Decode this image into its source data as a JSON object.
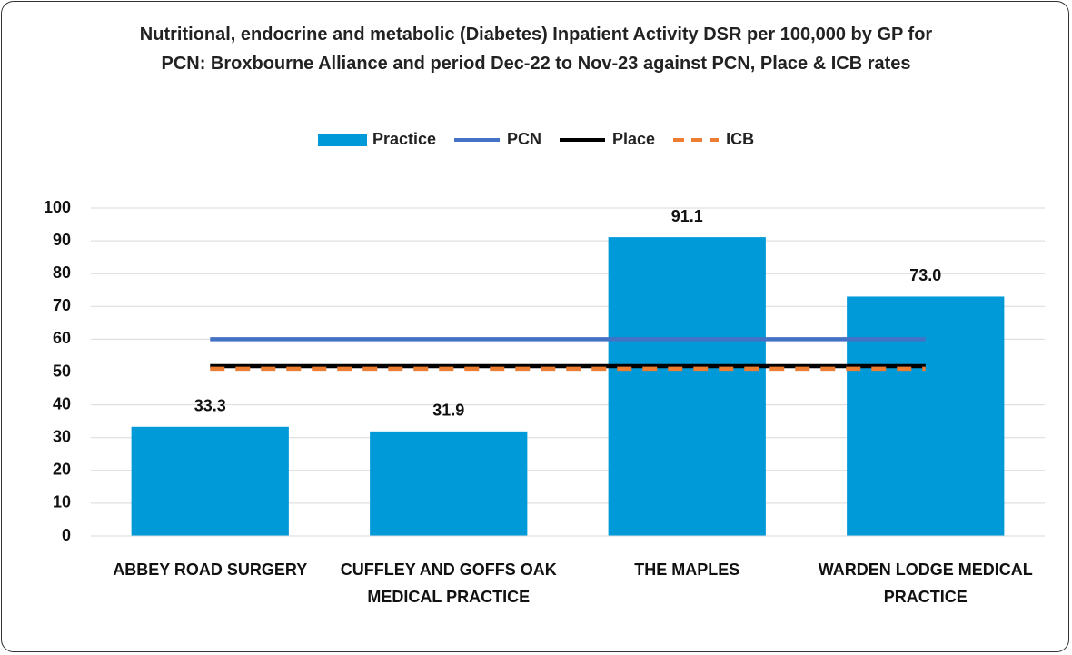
{
  "chart_data": {
    "type": "bar",
    "title": "Nutritional, endocrine and metabolic (Diabetes) Inpatient Activity DSR per 100,000 by GP for PCN: Broxbourne Alliance and period Dec-22 to Nov-23 against PCN, Place & ICB rates",
    "categories": [
      "ABBEY ROAD SURGERY",
      "CUFFLEY AND GOFFS OAK MEDICAL PRACTICE",
      "THE MAPLES",
      "WARDEN LODGE MEDICAL PRACTICE"
    ],
    "series": [
      {
        "name": "Practice",
        "type": "bar",
        "color": "#009ad8",
        "values": [
          33.3,
          31.9,
          91.1,
          73.0
        ],
        "value_labels": [
          "33.3",
          "31.9",
          "91.1",
          "73.0"
        ]
      },
      {
        "name": "PCN",
        "type": "line",
        "color": "#4472c4",
        "values": [
          60,
          60,
          60,
          60
        ]
      },
      {
        "name": "Place",
        "type": "line",
        "color": "#000000",
        "values": [
          51.8,
          51.8,
          51.8,
          51.8
        ]
      },
      {
        "name": "ICB",
        "type": "line",
        "color": "#ed7d31",
        "dashed": true,
        "values": [
          51,
          51,
          51,
          51
        ]
      }
    ],
    "ylim": [
      0,
      100
    ],
    "yticks": [
      0,
      10,
      20,
      30,
      40,
      50,
      60,
      70,
      80,
      90,
      100
    ],
    "grid": true,
    "legend": "top"
  }
}
